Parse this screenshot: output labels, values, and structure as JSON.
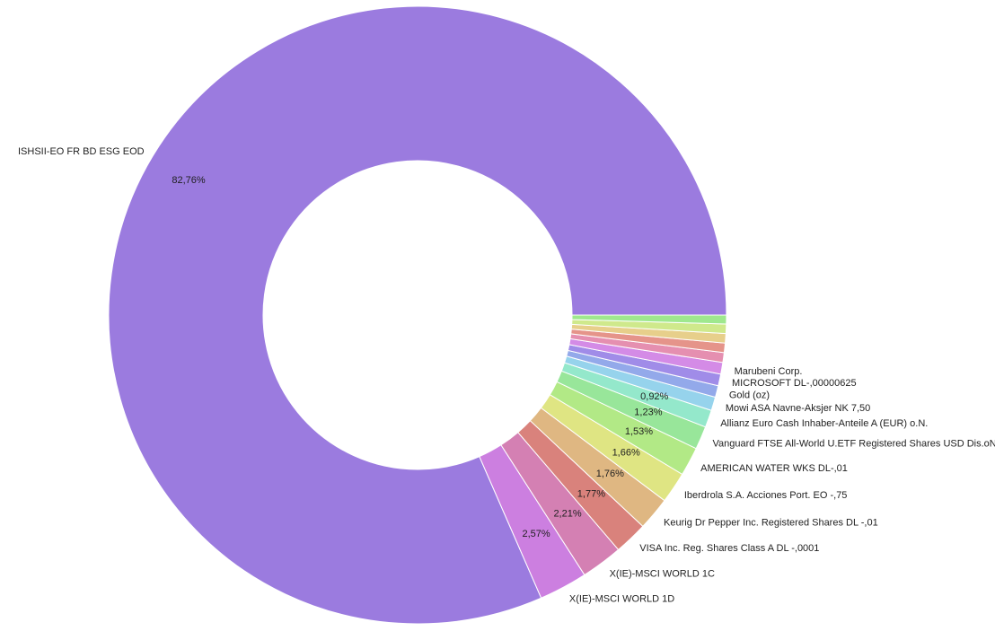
{
  "chart_data": {
    "type": "pie",
    "donut": true,
    "title": "",
    "slices": [
      {
        "label": "ISHSII-EO FR BD ESG EOD",
        "value": 82.76,
        "pct_label": "82,76%",
        "color": "#9b7bdf"
      },
      {
        "label": "X(IE)-MSCI WORLD 1D",
        "value": 2.57,
        "pct_label": "2,57%",
        "color": "#cc7fe0"
      },
      {
        "label": "X(IE)-MSCI WORLD 1C",
        "value": 2.21,
        "pct_label": "2,21%",
        "color": "#d480b3"
      },
      {
        "label": "VISA Inc. Reg. Shares Class A DL -,0001",
        "value": 1.77,
        "pct_label": "1,77%",
        "color": "#d9827c"
      },
      {
        "label": "Keurig Dr Pepper Inc. Registered Shares DL -,01",
        "value": 1.76,
        "pct_label": "1,76%",
        "color": "#dfb782"
      },
      {
        "label": "Iberdrola S.A. Acciones Port. EO -,75",
        "value": 1.66,
        "pct_label": "1,66%",
        "color": "#dfe583"
      },
      {
        "label": "AMERICAN WATER WKS DL-,01",
        "value": 1.53,
        "pct_label": "1,53%",
        "color": "#b2e986"
      },
      {
        "label": "Vanguard FTSE All-World U.ETF Registered Shares USD Dis.oN",
        "value": 1.23,
        "pct_label": "1,23%",
        "color": "#98e69a"
      },
      {
        "label": "Allianz Euro Cash Inhaber-Anteile A (EUR) o.N.",
        "value": 0.92,
        "pct_label": "0,92%",
        "color": "#94e8cb"
      },
      {
        "label": "Mowi ASA Navne-Aksjer NK 7,50",
        "value": 0.72,
        "pct_label": "",
        "color": "#96d3ec"
      },
      {
        "label": "Gold (oz)",
        "value": 0.62,
        "pct_label": "",
        "color": "#93a9ea"
      },
      {
        "label": "MICROSOFT    DL-,00000625",
        "value": 0.62,
        "pct_label": "",
        "color": "#a08ce8"
      },
      {
        "label": "Marubeni Corp.",
        "value": 0.62,
        "pct_label": "",
        "color": "#d48be6"
      },
      {
        "label": "",
        "value": 0.52,
        "pct_label": "",
        "color": "#e58fb0"
      },
      {
        "label": "",
        "value": 0.5,
        "pct_label": "",
        "color": "#e5948a"
      },
      {
        "label": "",
        "value": 0.5,
        "pct_label": "",
        "color": "#e7cf8b"
      },
      {
        "label": "",
        "value": 0.5,
        "pct_label": "",
        "color": "#cfe98c"
      },
      {
        "label": "",
        "value": 0.47,
        "pct_label": "",
        "color": "#9fe88e"
      }
    ]
  }
}
